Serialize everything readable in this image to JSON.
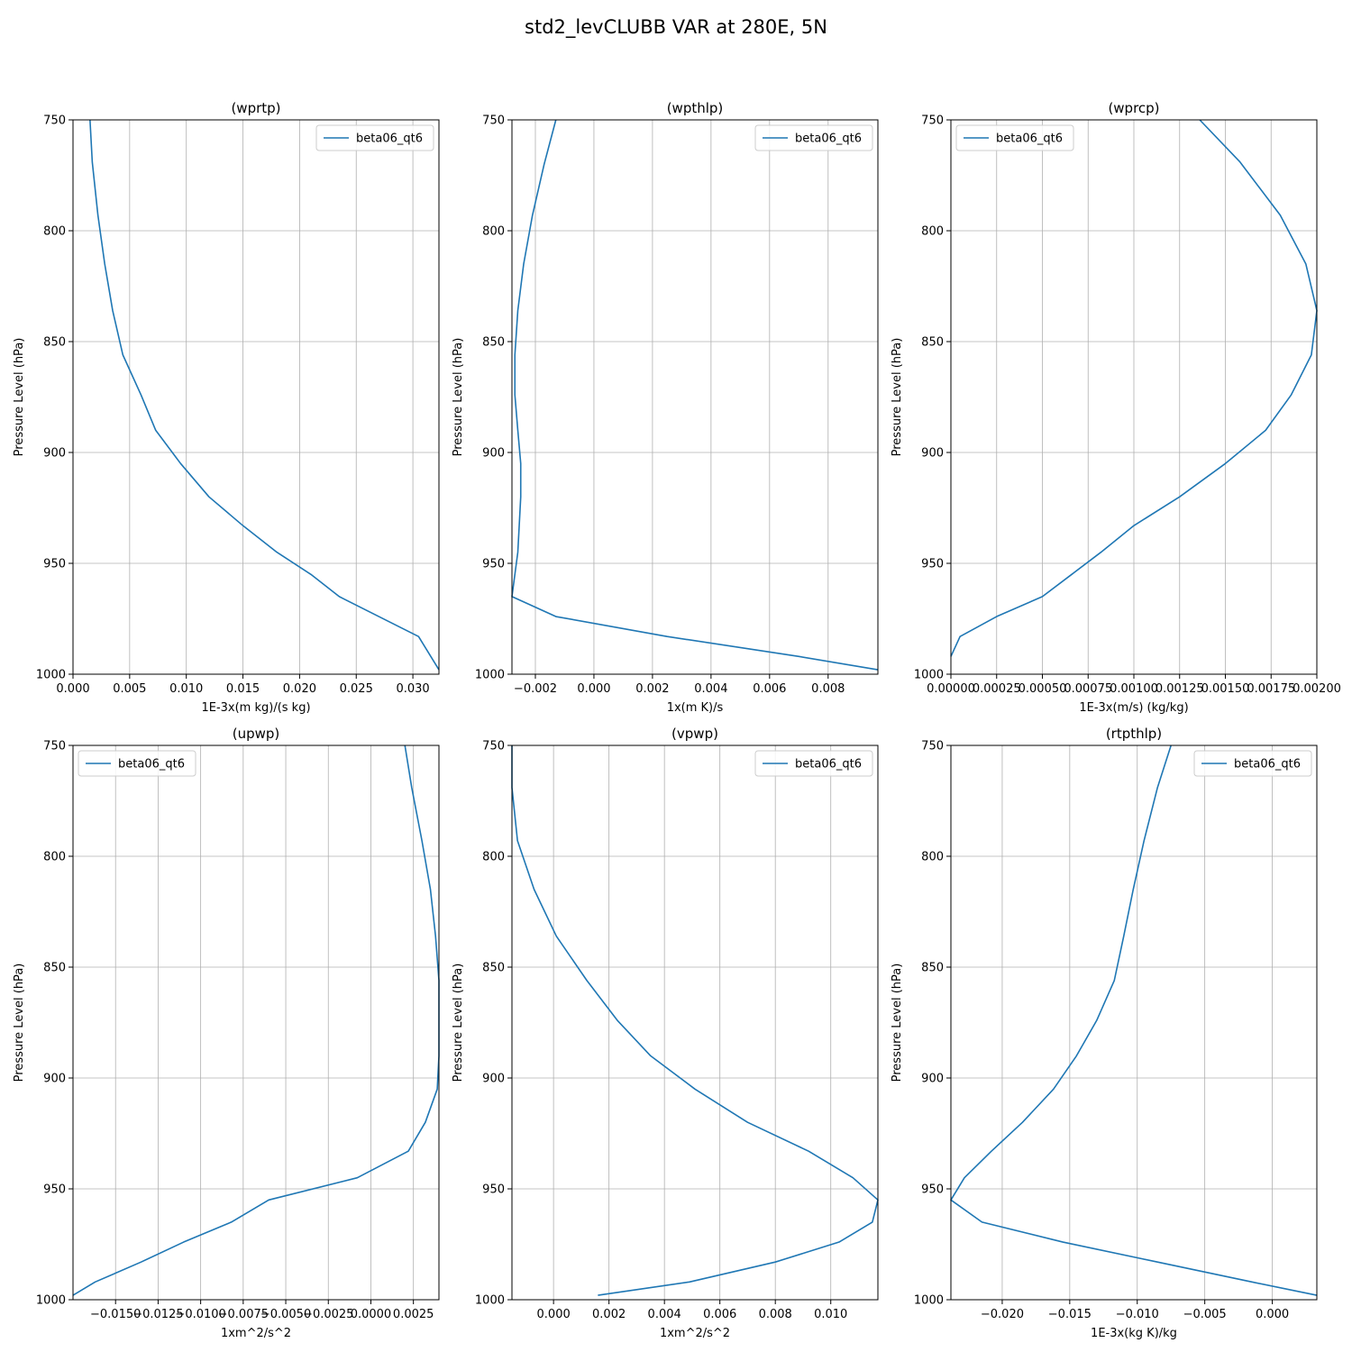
{
  "figure": {
    "suptitle": "std2_levCLUBB VAR at 280E, 5N"
  },
  "chart_data": [
    {
      "type": "line",
      "title": "(wprtp)",
      "xlabel": "1E-3x(m kg)/(s kg)",
      "ylabel": "Pressure Level (hPa)",
      "xlim": [
        0.0,
        0.0323
      ],
      "ylim": [
        1000,
        750
      ],
      "xticks": [
        0.0,
        0.005,
        0.01,
        0.015,
        0.02,
        0.025,
        0.03
      ],
      "xtick_labels": [
        "0.000",
        "0.005",
        "0.010",
        "0.015",
        "0.020",
        "0.025",
        "0.030"
      ],
      "yticks": [
        750,
        800,
        850,
        900,
        950,
        1000
      ],
      "ytick_labels": [
        "750",
        "800",
        "850",
        "900",
        "950",
        "1000"
      ],
      "grid": true,
      "legend": "top-right",
      "series": [
        {
          "name": "beta06_qt6",
          "color": "#1f77b4",
          "x": [
            0.0015,
            0.0017,
            0.0022,
            0.0028,
            0.0035,
            0.0044,
            0.006,
            0.0073,
            0.0095,
            0.012,
            0.015,
            0.018,
            0.021,
            0.0235,
            0.027,
            0.0305,
            0.0323
          ],
          "y": [
            750,
            769,
            793,
            815,
            836,
            856,
            874,
            890,
            905,
            920,
            933,
            945,
            955,
            965,
            974,
            983,
            998
          ]
        }
      ]
    },
    {
      "type": "line",
      "title": "(wpthlp)",
      "xlabel": "1x(m K)/s",
      "ylabel": "Pressure Level (hPa)",
      "xlim": [
        -0.0028,
        0.0097
      ],
      "ylim": [
        1000,
        750
      ],
      "xticks": [
        -0.002,
        0.0,
        0.002,
        0.004,
        0.006,
        0.008
      ],
      "xtick_labels": [
        "−0.002",
        "0.000",
        "0.002",
        "0.004",
        "0.006",
        "0.008"
      ],
      "yticks": [
        750,
        800,
        850,
        900,
        950,
        1000
      ],
      "ytick_labels": [
        "750",
        "800",
        "850",
        "900",
        "950",
        "1000"
      ],
      "grid": true,
      "legend": "top-right",
      "series": [
        {
          "name": "beta06_qt6",
          "color": "#1f77b4",
          "x": [
            -0.0013,
            -0.0017,
            -0.0021,
            -0.0024,
            -0.0026,
            -0.0027,
            -0.0027,
            -0.0026,
            -0.0025,
            -0.0025,
            -0.0026,
            -0.0028,
            -0.0013,
            0.0025,
            0.007,
            0.0097
          ],
          "y": [
            750,
            770,
            793,
            815,
            836,
            856,
            874,
            890,
            905,
            920,
            945,
            965,
            974,
            983,
            992,
            998
          ]
        }
      ]
    },
    {
      "type": "line",
      "title": "(wprcp)",
      "xlabel": "1E-3x(m/s) (kg/kg)",
      "ylabel": "Pressure Level (hPa)",
      "xlim": [
        0.0,
        0.002
      ],
      "ylim": [
        1000,
        750
      ],
      "xticks": [
        0.0,
        0.00025,
        0.0005,
        0.00075,
        0.001,
        0.00125,
        0.0015,
        0.00175,
        0.002
      ],
      "xtick_labels": [
        "0.00000",
        "0.00025",
        "0.00050",
        "0.00075",
        "0.00100",
        "0.00125",
        "0.00150",
        "0.00175",
        "0.00200"
      ],
      "yticks": [
        750,
        800,
        850,
        900,
        950,
        1000
      ],
      "ytick_labels": [
        "750",
        "800",
        "850",
        "900",
        "950",
        "1000"
      ],
      "grid": true,
      "legend": "top-left",
      "series": [
        {
          "name": "beta06_qt6",
          "color": "#1f77b4",
          "x": [
            0.00136,
            0.00158,
            0.0018,
            0.00194,
            0.002,
            0.00197,
            0.00186,
            0.00172,
            0.0015,
            0.00125,
            0.001,
            0.00082,
            0.00066,
            0.0005,
            0.00025,
            5e-05,
            0.0
          ],
          "y": [
            750,
            769,
            793,
            815,
            836,
            856,
            874,
            890,
            905,
            920,
            933,
            945,
            955,
            965,
            974,
            983,
            992
          ]
        }
      ]
    },
    {
      "type": "line",
      "title": "(upwp)",
      "xlabel": "1xm^2/s^2",
      "ylabel": "Pressure Level (hPa)",
      "xlim": [
        -0.0175,
        0.004
      ],
      "ylim": [
        1000,
        750
      ],
      "xticks": [
        -0.015,
        -0.0125,
        -0.01,
        -0.0075,
        -0.005,
        -0.0025,
        0.0,
        0.0025
      ],
      "xtick_labels": [
        "−0.0150",
        "−0.0125",
        "−0.0100",
        "−0.0075",
        "−0.0050",
        "−0.0025",
        "0.0000",
        "0.0025"
      ],
      "yticks": [
        750,
        800,
        850,
        900,
        950,
        1000
      ],
      "ytick_labels": [
        "750",
        "800",
        "850",
        "900",
        "950",
        "1000"
      ],
      "grid": true,
      "legend": "top-left",
      "series": [
        {
          "name": "beta06_qt6",
          "color": "#1f77b4",
          "x": [
            0.002,
            0.0024,
            0.003,
            0.0035,
            0.0038,
            0.004,
            0.004,
            0.004,
            0.0039,
            0.0032,
            0.0022,
            -0.0008,
            -0.006,
            -0.0082,
            -0.011,
            -0.0135,
            -0.0162,
            -0.0175
          ],
          "y": [
            750,
            769,
            793,
            815,
            836,
            856,
            874,
            890,
            905,
            920,
            933,
            945,
            955,
            965,
            974,
            983,
            992,
            998
          ]
        }
      ]
    },
    {
      "type": "line",
      "title": "(vpwp)",
      "xlabel": "1xm^2/s^2",
      "ylabel": "Pressure Level (hPa)",
      "xlim": [
        -0.0015,
        0.0117
      ],
      "ylim": [
        1000,
        750
      ],
      "xticks": [
        0.0,
        0.002,
        0.004,
        0.006,
        0.008,
        0.01
      ],
      "xtick_labels": [
        "0.000",
        "0.002",
        "0.004",
        "0.006",
        "0.008",
        "0.010"
      ],
      "yticks": [
        750,
        800,
        850,
        900,
        950,
        1000
      ],
      "ytick_labels": [
        "750",
        "800",
        "850",
        "900",
        "950",
        "1000"
      ],
      "grid": true,
      "legend": "top-right",
      "series": [
        {
          "name": "beta06_qt6",
          "color": "#1f77b4",
          "x": [
            -0.0015,
            -0.0015,
            -0.0013,
            -0.0007,
            0.0001,
            0.0012,
            0.0023,
            0.0035,
            0.0051,
            0.007,
            0.0092,
            0.0108,
            0.0117,
            0.0115,
            0.0103,
            0.008,
            0.0049,
            0.0016
          ],
          "y": [
            750,
            769,
            793,
            815,
            836,
            856,
            874,
            890,
            905,
            920,
            933,
            945,
            955,
            965,
            974,
            983,
            992,
            998
          ]
        }
      ]
    },
    {
      "type": "line",
      "title": "(rtpthlp)",
      "xlabel": "1E-3x(kg K)/kg",
      "ylabel": "Pressure Level (hPa)",
      "xlim": [
        -0.0238,
        0.0033
      ],
      "ylim": [
        1000,
        750
      ],
      "xticks": [
        -0.02,
        -0.015,
        -0.01,
        -0.005,
        0.0
      ],
      "xtick_labels": [
        "−0.020",
        "−0.015",
        "−0.010",
        "−0.005",
        "0.000"
      ],
      "yticks": [
        750,
        800,
        850,
        900,
        950,
        1000
      ],
      "ytick_labels": [
        "750",
        "800",
        "850",
        "900",
        "950",
        "1000"
      ],
      "grid": true,
      "legend": "top-right",
      "series": [
        {
          "name": "beta06_qt6",
          "color": "#1f77b4",
          "x": [
            -0.0075,
            -0.0085,
            -0.0095,
            -0.0103,
            -0.011,
            -0.0117,
            -0.013,
            -0.0145,
            -0.0162,
            -0.0185,
            -0.0208,
            -0.0228,
            -0.0238,
            -0.0215,
            -0.0155,
            -0.0085,
            -0.0015,
            0.0033
          ],
          "y": [
            750,
            769,
            793,
            815,
            836,
            856,
            874,
            890,
            905,
            920,
            933,
            945,
            955,
            965,
            974,
            983,
            992,
            998
          ]
        }
      ]
    }
  ]
}
